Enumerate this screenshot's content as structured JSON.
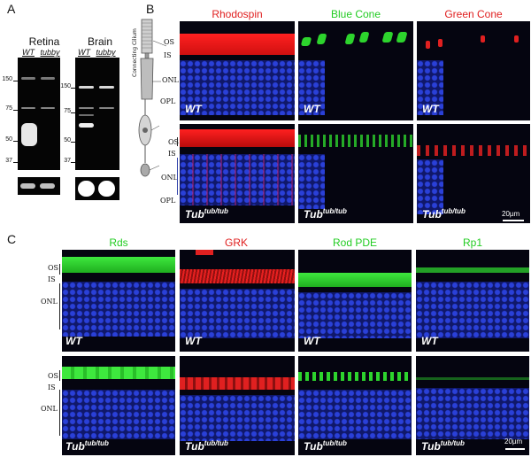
{
  "panels": {
    "a": "A",
    "b": "B",
    "c": "C"
  },
  "panel_a": {
    "retina": {
      "title": "Retina",
      "lanes": [
        "WT",
        "tubby"
      ],
      "markers": [
        "150",
        "75",
        "50",
        "37"
      ]
    },
    "brain": {
      "title": "Brain",
      "lanes": [
        "WT",
        "tubby"
      ],
      "markers": [
        "150",
        "75",
        "50",
        "37"
      ]
    }
  },
  "panel_b": {
    "diagram": {
      "cilium_label": "Connecting Cilium",
      "layers": [
        "OS",
        "IS",
        "ONL",
        "OPL"
      ]
    },
    "columns": [
      {
        "label": "Rhodospin",
        "color": "#e02020"
      },
      {
        "label": "Blue Cone",
        "color": "#22cc22"
      },
      {
        "label": "Green Cone",
        "color": "#e02020"
      }
    ],
    "row_layers": [
      "OS",
      "IS",
      "ONL",
      "OPL"
    ],
    "wt_label": "WT",
    "tub_label": "Tub",
    "tub_sup": "tub/tub",
    "scale_bar": "20µm"
  },
  "panel_c": {
    "columns": [
      {
        "label": "Rds",
        "color": "#22cc22"
      },
      {
        "label": "GRK",
        "color": "#e02020"
      },
      {
        "label": "Rod PDE",
        "color": "#22cc22"
      },
      {
        "label": "Rp1",
        "color": "#22cc22"
      }
    ],
    "row_layers": [
      "OS",
      "IS",
      "ONL"
    ],
    "wt_label": "WT",
    "tub_label": "Tub",
    "tub_sup": "tub/tub",
    "scale_bar": "20µm"
  }
}
